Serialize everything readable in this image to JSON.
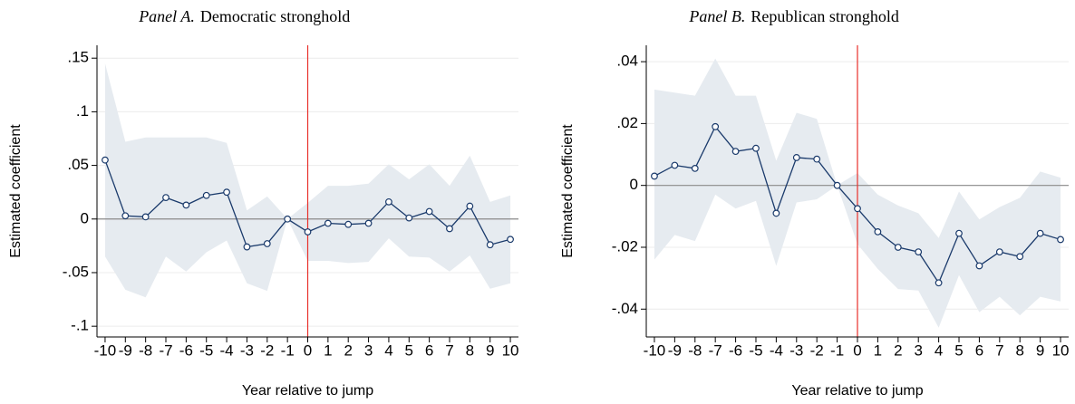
{
  "chart_data": [
    {
      "type": "line",
      "panel": "Panel A.",
      "title": "Democratic stronghold",
      "xlabel": "Year relative to jump",
      "ylabel": "Estimated coefficient",
      "x": [
        -10,
        -9,
        -8,
        -7,
        -6,
        -5,
        -4,
        -3,
        -2,
        -1,
        0,
        1,
        2,
        3,
        4,
        5,
        6,
        7,
        8,
        9,
        10
      ],
      "values": [
        0.055,
        0.003,
        0.002,
        0.02,
        0.013,
        0.022,
        0.025,
        -0.026,
        -0.023,
        0,
        -0.012,
        -0.004,
        -0.005,
        -0.004,
        0.016,
        0.001,
        0.007,
        -0.009,
        0.012,
        -0.024,
        -0.019
      ],
      "ci_upper": [
        0.145,
        0.072,
        0.076,
        0.076,
        0.076,
        0.076,
        0.071,
        0.008,
        0.021,
        0,
        0.015,
        0.031,
        0.031,
        0.033,
        0.051,
        0.037,
        0.051,
        0.031,
        0.059,
        0.016,
        0.022
      ],
      "ci_lower": [
        -0.035,
        -0.066,
        -0.073,
        -0.035,
        -0.049,
        -0.031,
        -0.02,
        -0.06,
        -0.067,
        0,
        -0.039,
        -0.039,
        -0.041,
        -0.04,
        -0.018,
        -0.035,
        -0.036,
        -0.049,
        -0.034,
        -0.065,
        -0.06
      ],
      "color": "#1a3a6b",
      "band_color": "#e6ebf0",
      "vline": 0,
      "vline_color": "#e8302a",
      "hline": 0,
      "hline_color": "#8a8a8a",
      "xlim": [
        -10.4,
        10.4
      ],
      "xticks": [
        -10,
        -9,
        -8,
        -7,
        -6,
        -5,
        -4,
        -3,
        -2,
        -1,
        0,
        1,
        2,
        3,
        4,
        5,
        6,
        7,
        8,
        9,
        10
      ],
      "ylim": [
        -0.11,
        0.162
      ],
      "yticks": [
        {
          "value": -0.1,
          "label": "-.1"
        },
        {
          "value": -0.05,
          "label": "-.05"
        },
        0,
        {
          "value": 0.05,
          "label": ".05"
        },
        {
          "value": 0.1,
          "label": ".1"
        },
        {
          "value": 0.15,
          "label": ".15"
        }
      ],
      "grid": true
    },
    {
      "type": "line",
      "panel": "Panel B.",
      "title": "Republican stronghold",
      "xlabel": "Year relative to jump",
      "ylabel": "Estimated coefficient",
      "x": [
        -10,
        -9,
        -8,
        -7,
        -6,
        -5,
        -4,
        -3,
        -2,
        -1,
        0,
        1,
        2,
        3,
        4,
        5,
        6,
        7,
        8,
        9,
        10
      ],
      "values": [
        0.003,
        0.0065,
        0.0055,
        0.019,
        0.011,
        0.012,
        -0.009,
        0.009,
        0.0085,
        0,
        -0.0075,
        -0.015,
        -0.02,
        -0.0215,
        -0.0315,
        -0.0155,
        -0.026,
        -0.0215,
        -0.023,
        -0.0155,
        -0.0175
      ],
      "ci_upper": [
        0.031,
        0.03,
        0.029,
        0.041,
        0.029,
        0.029,
        0.008,
        0.0235,
        0.0215,
        0,
        0.004,
        -0.003,
        -0.0065,
        -0.009,
        -0.017,
        -0.002,
        -0.011,
        -0.007,
        -0.004,
        0.0045,
        0.0025
      ],
      "ci_lower": [
        -0.024,
        -0.016,
        -0.018,
        -0.003,
        -0.0075,
        -0.005,
        -0.026,
        -0.0055,
        -0.0045,
        0,
        -0.019,
        -0.027,
        -0.0335,
        -0.034,
        -0.046,
        -0.029,
        -0.041,
        -0.036,
        -0.042,
        -0.036,
        -0.0375
      ],
      "color": "#1a3a6b",
      "band_color": "#e6ebf0",
      "vline": 0,
      "vline_color": "#e8302a",
      "hline": 0,
      "hline_color": "#8a8a8a",
      "xlim": [
        -10.4,
        10.4
      ],
      "xticks": [
        -10,
        -9,
        -8,
        -7,
        -6,
        -5,
        -4,
        -3,
        -2,
        -1,
        0,
        1,
        2,
        3,
        4,
        5,
        6,
        7,
        8,
        9,
        10
      ],
      "ylim": [
        -0.049,
        0.0453
      ],
      "yticks": [
        {
          "value": -0.04,
          "label": "-.04"
        },
        {
          "value": -0.02,
          "label": "-.02"
        },
        0,
        {
          "value": 0.02,
          "label": ".02"
        },
        {
          "value": 0.04,
          "label": ".04"
        }
      ],
      "grid": true
    }
  ]
}
